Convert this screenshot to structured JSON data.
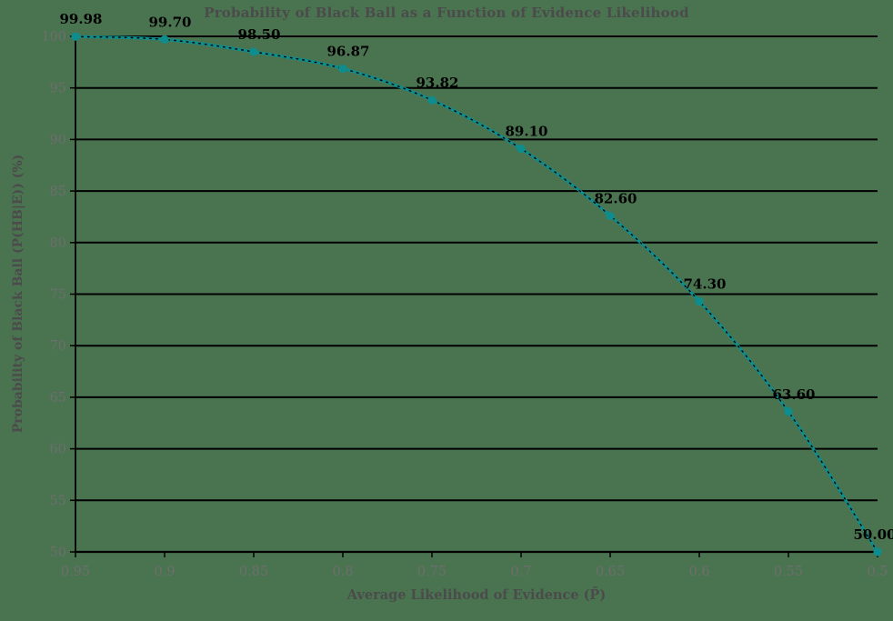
{
  "chart_data": {
    "type": "line",
    "title": "Probability of Black Ball as a Function of Evidence Likelihood",
    "xlabel": "Average Likelihood of Evidence (P̄)",
    "ylabel": "Probability of Black Ball (P(HB|E)) (%)",
    "x": [
      0.95,
      0.9,
      0.85,
      0.8,
      0.75,
      0.7,
      0.65,
      0.6,
      0.55,
      0.5
    ],
    "y": [
      99.98,
      99.7,
      98.5,
      96.87,
      93.82,
      89.1,
      82.6,
      74.3,
      63.6,
      50.0
    ],
    "point_labels": [
      "99.98",
      "99.70",
      "98.50",
      "96.87",
      "93.82",
      "89.10",
      "82.60",
      "74.30",
      "63.60",
      "50.00"
    ],
    "x_tick_labels": [
      "0.95",
      "0.9",
      "0.85",
      "0.8",
      "0.75",
      "0.7",
      "0.65",
      "0.6",
      "0.55",
      "0.5"
    ],
    "y_tick_labels": [
      "100",
      "95",
      "90",
      "85",
      "80",
      "75",
      "70",
      "65",
      "60",
      "55",
      "50"
    ],
    "xlim": [
      0.95,
      0.5
    ],
    "ylim": [
      50,
      100
    ],
    "x_axis_reversed": true,
    "grid": "horizontal",
    "legend": "none",
    "marker": "circle",
    "line_style": "solid-with-black-dotted-overlay",
    "colors": {
      "background": "#4a7350",
      "line": "#0d8d8d",
      "marker": "#0d8d8d",
      "dotted_overlay": "#000000",
      "grid": "#000000",
      "spine": "#000000",
      "title": "#4b4b4b",
      "axis_label": "#4b4b4b",
      "tick_label": "#6e6e6e",
      "data_label": "#000000"
    }
  }
}
